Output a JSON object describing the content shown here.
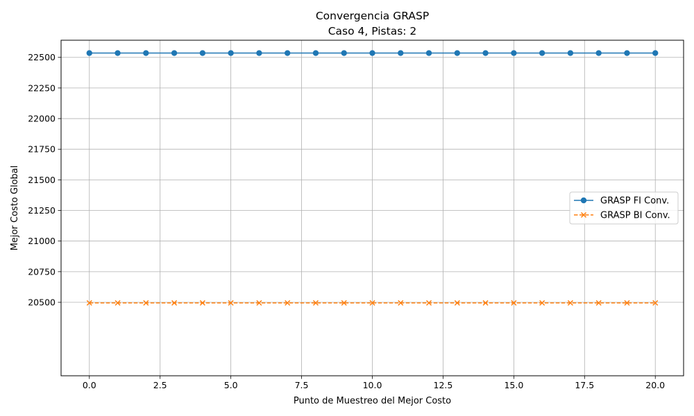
{
  "chart_data": {
    "type": "line",
    "title": "Convergencia GRASP",
    "subtitle": "Caso 4, Pistas: 2",
    "xlabel": "Punto de Muestreo del Mejor Costo",
    "ylabel": "Mejor Costo Global",
    "xlim": [
      -1.0,
      21.0
    ],
    "ylim": [
      19900,
      22640
    ],
    "xticks": [
      0.0,
      2.5,
      5.0,
      7.5,
      10.0,
      12.5,
      15.0,
      17.5,
      20.0
    ],
    "xtick_labels": [
      "0.0",
      "2.5",
      "5.0",
      "7.5",
      "10.0",
      "12.5",
      "15.0",
      "17.5",
      "20.0"
    ],
    "yticks": [
      20500,
      20750,
      21000,
      21250,
      21500,
      21750,
      22000,
      22250,
      22500
    ],
    "ytick_labels": [
      "20500",
      "20750",
      "21000",
      "21250",
      "21500",
      "21750",
      "22000",
      "22250",
      "22500"
    ],
    "grid": true,
    "legend_position": "center-right",
    "x": [
      0,
      1,
      2,
      3,
      4,
      5,
      6,
      7,
      8,
      9,
      10,
      11,
      12,
      13,
      14,
      15,
      16,
      17,
      18,
      19,
      20
    ],
    "series": [
      {
        "name": "GRASP FI Conv.",
        "values": [
          22535,
          22535,
          22535,
          22535,
          22535,
          22535,
          22535,
          22535,
          22535,
          22535,
          22535,
          22535,
          22535,
          22535,
          22535,
          22535,
          22535,
          22535,
          22535,
          22535,
          22535
        ],
        "color": "#1f77b4",
        "marker": "circle",
        "linestyle": "solid"
      },
      {
        "name": "GRASP BI Conv.",
        "values": [
          20495,
          20495,
          20495,
          20495,
          20495,
          20495,
          20495,
          20495,
          20495,
          20495,
          20495,
          20495,
          20495,
          20495,
          20495,
          20495,
          20495,
          20495,
          20495,
          20495,
          20495
        ],
        "color": "#ff7f0e",
        "marker": "x",
        "linestyle": "dashed"
      }
    ]
  }
}
